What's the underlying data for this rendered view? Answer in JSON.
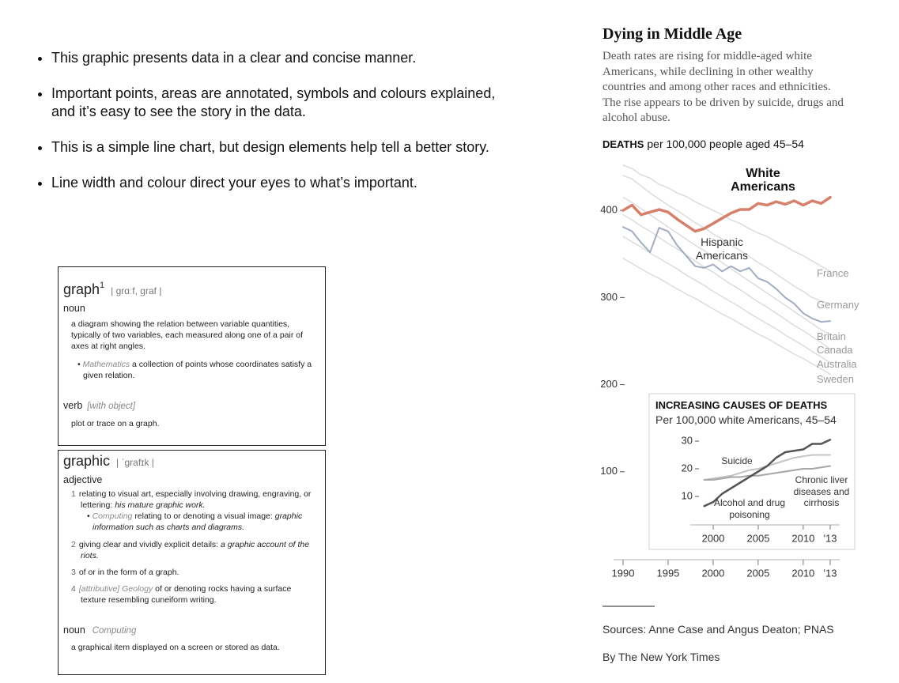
{
  "bullets": [
    "This graphic presents data in a clear and concise manner.",
    "Important points, areas are annotated, symbols and colours explained, and it’s easy to see the story in the data.",
    "This is a simple line chart, but design elements help tell a better story.",
    "Line width and colour direct your eyes to what’s important."
  ],
  "dictionary": [
    {
      "headword": "graph",
      "superscript": "1",
      "pronunciation": "| grɑːf, graf |",
      "pos1": "noun",
      "definition": "a diagram showing the relation between variable quantities, typically of two variables, each measured along one of a pair of axes at right angles.",
      "sub_domain": "Mathematics",
      "sub_text": "a collection of points whose coordinates satisfy a given relation.",
      "pos2": "verb",
      "grammar": "[with object]",
      "definition2": "plot or trace on a graph."
    },
    {
      "headword": "graphic",
      "pronunciation": "| ˈgrafɪk |",
      "pos1": "adjective",
      "senses": [
        {
          "number": 1,
          "text": "relating to visual art, especially involving drawing, engraving, or lettering:",
          "example": "his mature graphic work."
        },
        {
          "number": 2,
          "text": "giving clear and vividly explicit details:",
          "example": "a graphic account of the riots."
        },
        {
          "number": 3,
          "text": "of or in the form of a graph."
        },
        {
          "number": 4,
          "grammar": "[attributive]",
          "domain": "Geology",
          "text": "of or denoting rocks having a surface texture resembling cuneiform writing."
        }
      ],
      "sub_domain": "Computing",
      "sub_text": "relating to or denoting a visual image:",
      "sub_example": "graphic information such as charts and diagrams.",
      "pos2": "noun",
      "pos2_domain": "Computing",
      "definition2": "a graphical item displayed on a screen or stored as data."
    }
  ],
  "chart_data": [
    {
      "type": "line",
      "title": "Dying in Middle Age",
      "subtitle": "Death rates are rising for middle-aged white Americans, while declining in other wealthy countries and among other races and ethnicities. The rise appears to be driven by suicide, drugs and alcohol abuse.",
      "ylabel_bold": "DEATHS",
      "ylabel": "per 100,000 people aged 45–54",
      "x": [
        1990,
        1991,
        1992,
        1993,
        1994,
        1995,
        1996,
        1997,
        1998,
        1999,
        2000,
        2001,
        2002,
        2003,
        2004,
        2005,
        2006,
        2007,
        2008,
        2009,
        2010,
        2011,
        2012,
        2013
      ],
      "xlim": [
        1990,
        2013
      ],
      "xticks": [
        1990,
        1995,
        2000,
        2005,
        2010,
        {
          "value": 2013,
          "label": "'13"
        }
      ],
      "ylim": [
        0,
        470
      ],
      "yticks": [
        100,
        200,
        300,
        400
      ],
      "grid": false,
      "series": [
        {
          "name": "White Americans",
          "color": "#d6806b",
          "values": [
            400,
            406,
            395,
            398,
            401,
            398,
            390,
            383,
            376,
            379,
            385,
            391,
            397,
            401,
            401,
            408,
            406,
            410,
            407,
            411,
            406,
            411,
            408,
            415
          ]
        },
        {
          "name": "Hispanic Americans",
          "color": "#a3abc4",
          "values": [
            381,
            376,
            363,
            352,
            380,
            376,
            360,
            348,
            336,
            334,
            338,
            330,
            336,
            330,
            334,
            322,
            318,
            310,
            300,
            293,
            282,
            276,
            272,
            273
          ]
        },
        {
          "name": "France",
          "color": "#dcdcdc",
          "values": [
            452,
            448,
            441,
            437,
            430,
            426,
            420,
            416,
            410,
            405,
            400,
            395,
            389,
            385,
            379,
            374,
            370,
            364,
            359,
            353,
            348,
            342,
            336,
            330
          ]
        },
        {
          "name": "Germany",
          "color": "#dcdcdc",
          "values": [
            440,
            436,
            428,
            420,
            413,
            406,
            400,
            393,
            386,
            380,
            373,
            367,
            360,
            354,
            347,
            340,
            334,
            327,
            320,
            313,
            307,
            300,
            296,
            293
          ]
        },
        {
          "name": "Britain",
          "color": "#dcdcdc",
          "values": [
            415,
            409,
            402,
            395,
            388,
            381,
            374,
            367,
            360,
            354,
            347,
            340,
            333,
            326,
            319,
            312,
            305,
            298,
            291,
            284,
            277,
            270,
            263,
            257
          ]
        },
        {
          "name": "Canada",
          "color": "#dcdcdc",
          "values": [
            395,
            389,
            382,
            376,
            369,
            362,
            356,
            349,
            342,
            335,
            329,
            322,
            315,
            309,
            302,
            295,
            289,
            282,
            275,
            268,
            262,
            255,
            248,
            241
          ]
        },
        {
          "name": "Australia",
          "color": "#dcdcdc",
          "values": [
            370,
            364,
            358,
            351,
            345,
            339,
            333,
            326,
            320,
            314,
            307,
            301,
            295,
            289,
            282,
            276,
            270,
            264,
            257,
            251,
            245,
            238,
            232,
            225
          ]
        },
        {
          "name": "Sweden",
          "color": "#dcdcdc",
          "values": [
            345,
            339,
            333,
            327,
            322,
            316,
            310,
            304,
            299,
            293,
            287,
            281,
            276,
            270,
            264,
            258,
            253,
            247,
            241,
            235,
            230,
            224,
            218,
            212
          ]
        }
      ],
      "source": "Sources: Anne Case and Angus Deaton; PNAS",
      "byline": "By The New York Times"
    },
    {
      "type": "line",
      "title": "INCREASING CAUSES OF DEATHS",
      "subtitle": "Per 100,000 white Americans, 45–54",
      "x": [
        1999,
        2000,
        2001,
        2002,
        2003,
        2004,
        2005,
        2006,
        2007,
        2008,
        2009,
        2010,
        2011,
        2012,
        2013
      ],
      "xlim": [
        1998.5,
        2013
      ],
      "xticks": [
        2000,
        2005,
        2010,
        {
          "value": 2013,
          "label": "'13"
        }
      ],
      "ylim": [
        4,
        33
      ],
      "yticks": [
        10,
        20,
        30
      ],
      "grid": false,
      "series": [
        {
          "name": "Alcohol and drug poisoning",
          "color": "#555555",
          "values": [
            6.5,
            8,
            11,
            13,
            15,
            17,
            19,
            21,
            24,
            26,
            26.5,
            27,
            29,
            29,
            30.5
          ]
        },
        {
          "name": "Suicide",
          "color": "#c4c4c4",
          "values": [
            16,
            16.5,
            17,
            17.5,
            18.5,
            19.5,
            20,
            21,
            22,
            23,
            24,
            24.5,
            25,
            25,
            25
          ]
        },
        {
          "name": "Chronic liver diseases and cirrhosis",
          "color": "#a6a6a6",
          "values": [
            16,
            16,
            16.5,
            17,
            17,
            17.5,
            17.5,
            18,
            18.5,
            19,
            19.5,
            20,
            20,
            20.5,
            21
          ]
        }
      ]
    }
  ]
}
